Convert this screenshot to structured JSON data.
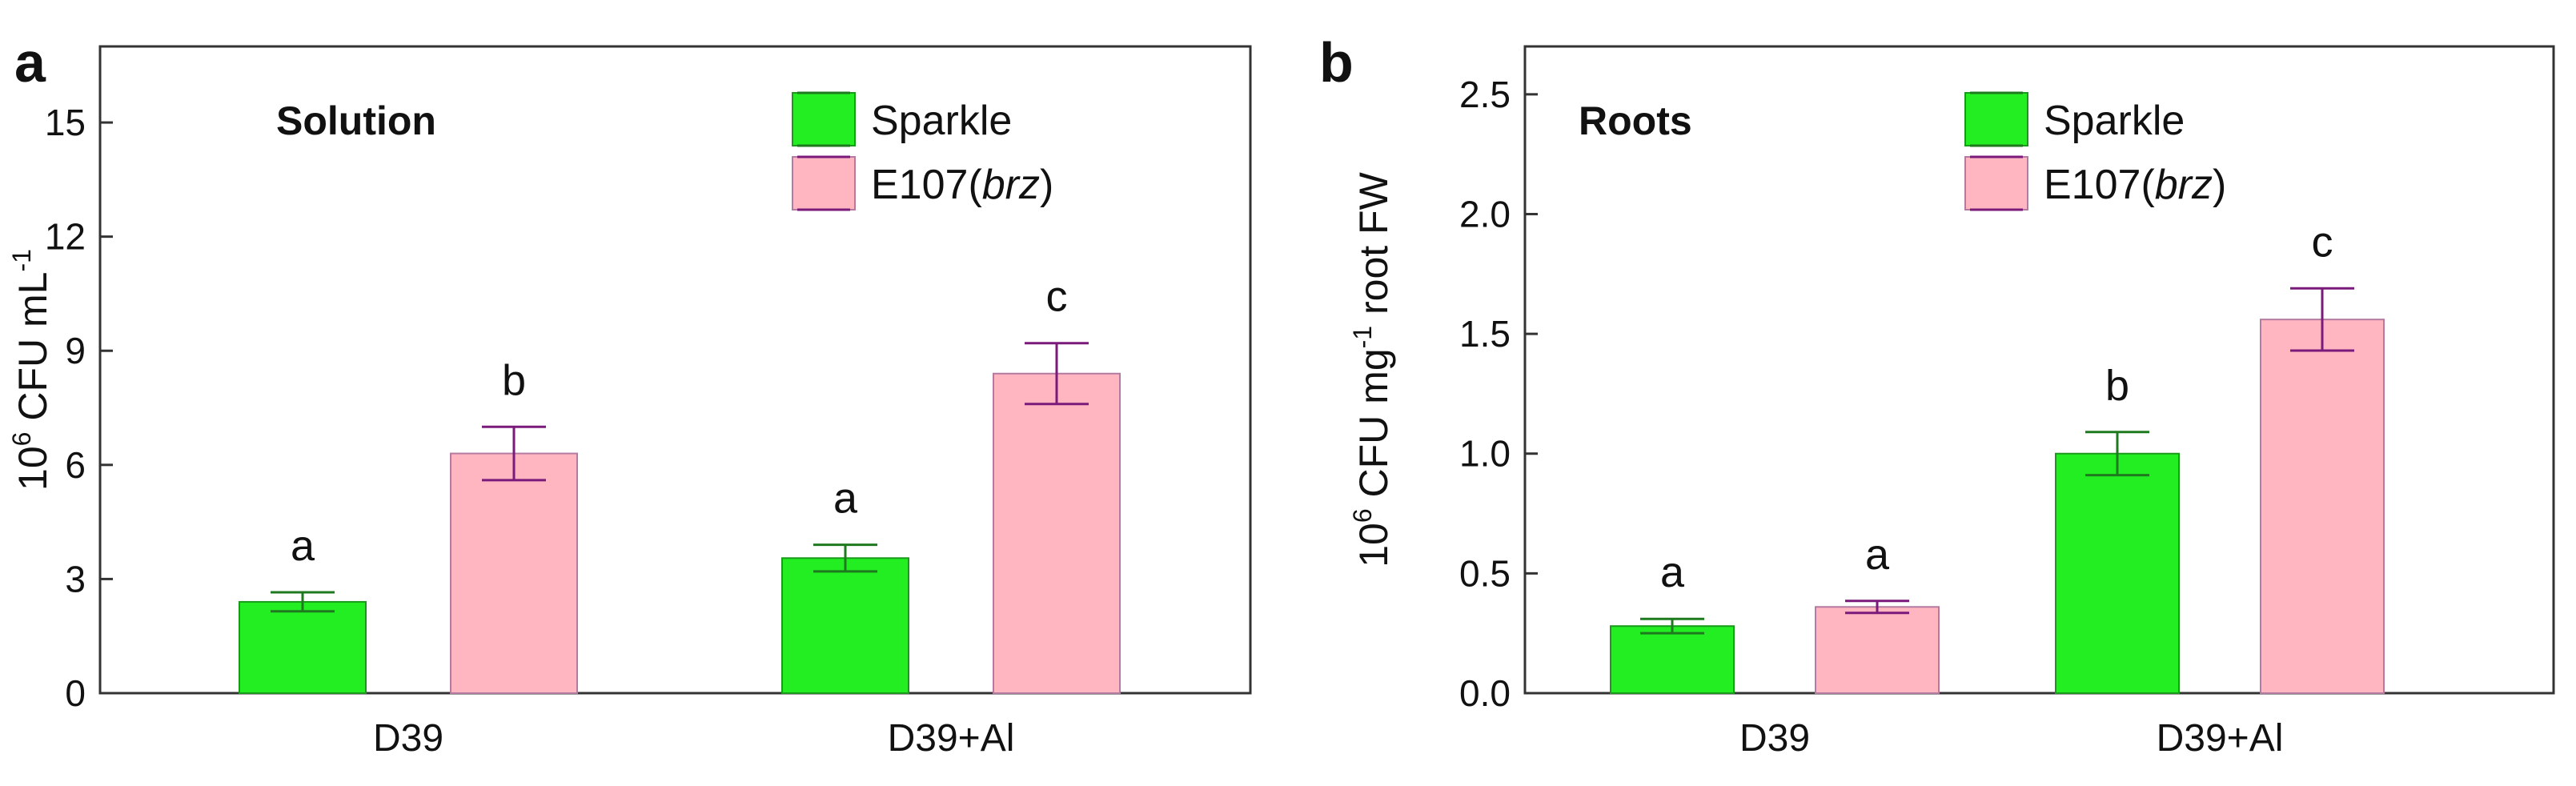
{
  "figure": {
    "legend_items": [
      {
        "name": "Sparkle",
        "italic_part": "",
        "suffix": "",
        "fill": "#22ee22",
        "stroke": "#1a9a1a",
        "error_color": "#1f7a1f"
      },
      {
        "name": "E107(",
        "italic_part": "brz",
        "suffix": ")",
        "fill": "#ffb6c1",
        "stroke": "#b57aa0",
        "error_color": "#7a1a7a"
      }
    ]
  },
  "chart_data": [
    {
      "type": "bar",
      "panel_label": "a",
      "title": "Solution",
      "ylabel_parts": {
        "base": "10",
        "exp": "6",
        "unit": " CFU mL",
        "unit_exp": "-1",
        "tail": ""
      },
      "categories": [
        "D39",
        "D39+Al"
      ],
      "ylim": [
        0,
        17
      ],
      "yticks": [
        0,
        3,
        6,
        9,
        12,
        15
      ],
      "series": [
        {
          "name": "Sparkle",
          "values": [
            2.4,
            3.55
          ],
          "errors": [
            0.25,
            0.35
          ],
          "letters": [
            "a",
            "a"
          ]
        },
        {
          "name": "E107(brz)",
          "values": [
            6.3,
            8.4
          ],
          "errors": [
            0.7,
            0.8
          ],
          "letters": [
            "b",
            "c"
          ]
        }
      ]
    },
    {
      "type": "bar",
      "panel_label": "b",
      "title": "Roots",
      "ylabel_parts": {
        "base": "10",
        "exp": "6",
        "unit": " CFU mg",
        "unit_exp": "-1",
        "tail": " root FW"
      },
      "categories": [
        "D39",
        "D39+Al"
      ],
      "ylim": [
        0,
        2.7
      ],
      "yticks": [
        "0.0",
        "0.5",
        "1.0",
        "1.5",
        "2.0",
        "2.5"
      ],
      "series": [
        {
          "name": "Sparkle",
          "values": [
            0.28,
            1.0
          ],
          "errors": [
            0.03,
            0.09
          ],
          "letters": [
            "a",
            "b"
          ]
        },
        {
          "name": "E107(brz)",
          "values": [
            0.36,
            1.56
          ],
          "errors": [
            0.025,
            0.13
          ],
          "letters": [
            "a",
            "c"
          ]
        }
      ]
    }
  ]
}
